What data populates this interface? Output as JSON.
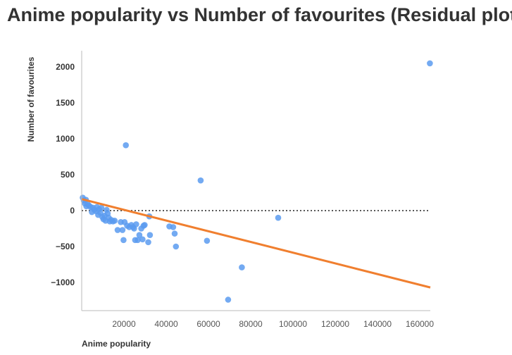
{
  "chart_data": {
    "type": "scatter",
    "title": "Anime popularity vs Number of favourites (Residual plot)",
    "xlabel": "Anime popularity",
    "ylabel": "Number of favourites",
    "xlim": [
      0,
      165000
    ],
    "ylim": [
      -1400,
      2250
    ],
    "x_ticks": [
      20000,
      40000,
      60000,
      80000,
      100000,
      120000,
      140000,
      160000
    ],
    "y_ticks": [
      -1000,
      -500,
      0,
      500,
      1000,
      1500,
      2000
    ],
    "x_tick_labels": [
      "20000",
      "40000",
      "60000",
      "80000",
      "100000",
      "120000",
      "140000",
      "160000"
    ],
    "y_tick_labels": [
      "−1000",
      "−500",
      "0",
      "500",
      "1000",
      "1500",
      "2000"
    ],
    "zero_line": true,
    "grid": false,
    "point_color": "#5b9bf0",
    "line_color": "#f07f2f",
    "points": [
      {
        "x": 500,
        "y": 180
      },
      {
        "x": 1000,
        "y": 140
      },
      {
        "x": 1500,
        "y": 100
      },
      {
        "x": 2000,
        "y": 150
      },
      {
        "x": 2200,
        "y": 60
      },
      {
        "x": 2800,
        "y": 90
      },
      {
        "x": 3500,
        "y": 70
      },
      {
        "x": 4200,
        "y": 50
      },
      {
        "x": 4800,
        "y": -20
      },
      {
        "x": 5300,
        "y": 40
      },
      {
        "x": 6000,
        "y": 10
      },
      {
        "x": 6800,
        "y": -10
      },
      {
        "x": 7200,
        "y": 50
      },
      {
        "x": 7800,
        "y": -60
      },
      {
        "x": 8200,
        "y": 20
      },
      {
        "x": 8800,
        "y": -30
      },
      {
        "x": 9300,
        "y": 40
      },
      {
        "x": 9800,
        "y": -90
      },
      {
        "x": 10300,
        "y": -120
      },
      {
        "x": 10800,
        "y": -70
      },
      {
        "x": 11300,
        "y": -140
      },
      {
        "x": 11800,
        "y": 10
      },
      {
        "x": 12300,
        "y": -40
      },
      {
        "x": 12800,
        "y": -100
      },
      {
        "x": 13300,
        "y": -150
      },
      {
        "x": 14000,
        "y": -130
      },
      {
        "x": 14800,
        "y": -150
      },
      {
        "x": 15600,
        "y": -140
      },
      {
        "x": 17000,
        "y": -270
      },
      {
        "x": 18500,
        "y": -160
      },
      {
        "x": 19300,
        "y": -270
      },
      {
        "x": 19800,
        "y": -410
      },
      {
        "x": 20300,
        "y": -160
      },
      {
        "x": 20900,
        "y": 910
      },
      {
        "x": 21500,
        "y": -210
      },
      {
        "x": 22500,
        "y": -230
      },
      {
        "x": 23500,
        "y": -200
      },
      {
        "x": 24300,
        "y": -230
      },
      {
        "x": 24800,
        "y": -250
      },
      {
        "x": 25300,
        "y": -410
      },
      {
        "x": 25800,
        "y": -190
      },
      {
        "x": 26500,
        "y": -410
      },
      {
        "x": 27300,
        "y": -340
      },
      {
        "x": 28200,
        "y": -250
      },
      {
        "x": 28800,
        "y": -400
      },
      {
        "x": 29300,
        "y": -210
      },
      {
        "x": 29800,
        "y": -200
      },
      {
        "x": 31500,
        "y": -440
      },
      {
        "x": 32000,
        "y": -80
      },
      {
        "x": 32300,
        "y": -340
      },
      {
        "x": 41500,
        "y": -220
      },
      {
        "x": 43300,
        "y": -230
      },
      {
        "x": 44000,
        "y": -320
      },
      {
        "x": 44600,
        "y": -500
      },
      {
        "x": 56300,
        "y": 420
      },
      {
        "x": 59300,
        "y": -420
      },
      {
        "x": 69300,
        "y": -1240
      },
      {
        "x": 75800,
        "y": -790
      },
      {
        "x": 93000,
        "y": -100
      },
      {
        "x": 164800,
        "y": 2050
      }
    ],
    "fit_line": [
      {
        "x": 0,
        "y": 160
      },
      {
        "x": 165000,
        "y": -1070
      }
    ]
  }
}
